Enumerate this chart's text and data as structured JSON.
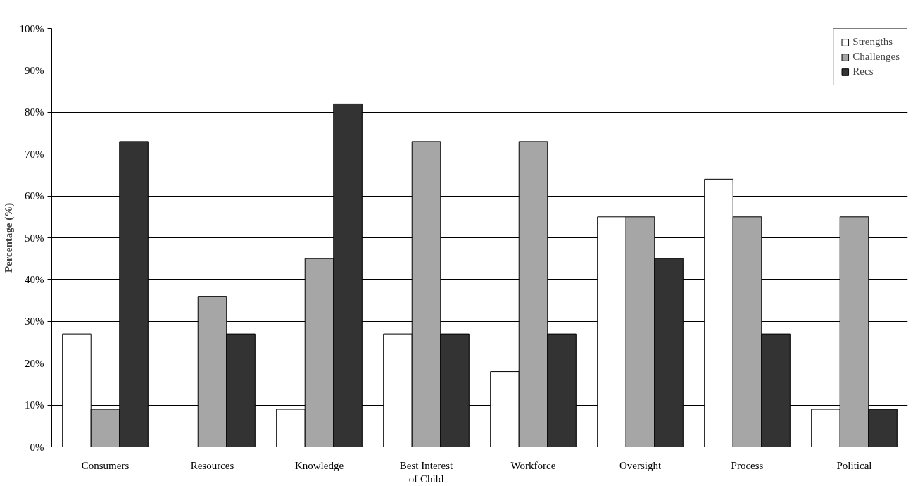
{
  "chart_data": {
    "type": "bar",
    "ylabel": "Percentage (%)",
    "categories": [
      "Consumers",
      "Resources",
      "Knowledge",
      "Best Interest of Child",
      "Workforce",
      "Oversight",
      "Process",
      "Political"
    ],
    "series": [
      {
        "name": "Strengths",
        "color": "#ffffff",
        "values": [
          27,
          null,
          9,
          27,
          18,
          55,
          64,
          9
        ]
      },
      {
        "name": "Challenges",
        "color": "#a6a6a6",
        "values": [
          9,
          36,
          45,
          73,
          73,
          55,
          55,
          55
        ]
      },
      {
        "name": "Recs",
        "color": "#333333",
        "values": [
          73,
          27,
          82,
          27,
          27,
          45,
          27,
          9
        ]
      }
    ],
    "ylim": [
      0,
      100
    ],
    "yticks": [
      {
        "value": 0,
        "label": "0%"
      },
      {
        "value": 10,
        "label": "10%"
      },
      {
        "value": 20,
        "label": "20%"
      },
      {
        "value": 30,
        "label": "30%"
      },
      {
        "value": 40,
        "label": "40%"
      },
      {
        "value": 50,
        "label": "50%"
      },
      {
        "value": 60,
        "label": "60%"
      },
      {
        "value": 70,
        "label": "70%"
      },
      {
        "value": 80,
        "label": "80%"
      },
      {
        "value": 90,
        "label": "90%"
      },
      {
        "value": 100,
        "label": "100%"
      }
    ],
    "grid": "y",
    "legend": "top right"
  }
}
